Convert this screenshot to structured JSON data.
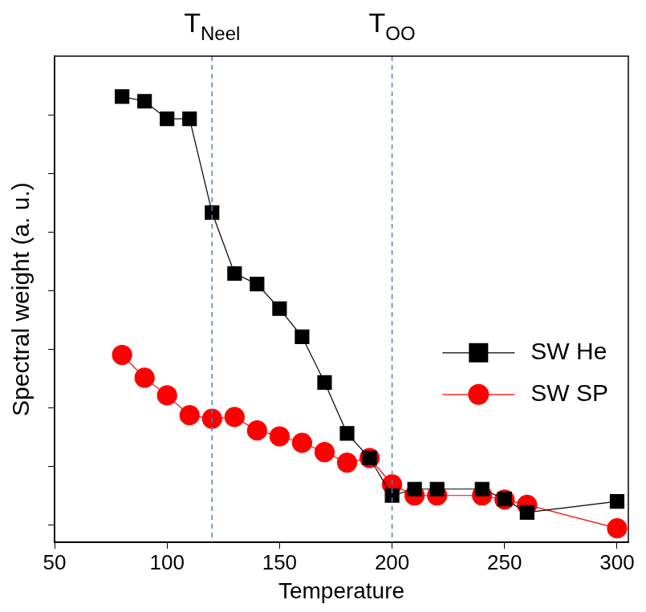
{
  "chart_data": {
    "type": "line",
    "x_label": "Temperature",
    "y_label": "Spectral weight (a. u.)",
    "x": [
      80,
      90,
      100,
      110,
      120,
      130,
      140,
      150,
      160,
      170,
      180,
      190,
      200,
      210,
      220,
      240,
      250,
      260,
      300
    ],
    "series": [
      {
        "name": "SW He",
        "color": "#000000",
        "marker": "square",
        "values": [
          8.31,
          8.23,
          7.93,
          7.93,
          6.33,
          5.29,
          5.11,
          4.69,
          4.21,
          3.43,
          2.56,
          2.14,
          1.5,
          1.61,
          1.61,
          1.61,
          1.44,
          1.21,
          1.4
        ]
      },
      {
        "name": "SW SP",
        "color": "#ff0000",
        "marker": "circle",
        "values": [
          3.9,
          3.51,
          3.21,
          2.87,
          2.81,
          2.84,
          2.61,
          2.51,
          2.4,
          2.24,
          2.06,
          2.14,
          1.69,
          1.5,
          1.5,
          1.5,
          1.43,
          1.34,
          0.94
        ]
      }
    ],
    "xlim": [
      50,
      305
    ],
    "xticks": [
      50,
      100,
      150,
      200,
      250,
      300
    ],
    "ylim": [
      0.7,
      9
    ],
    "yticks": [
      1,
      2,
      3,
      4,
      5,
      6,
      7,
      8
    ],
    "tick_labels": "x",
    "grid": false,
    "legend": "right",
    "annotations": [
      {
        "text": "T",
        "subscript": "Neel",
        "x": 120,
        "line_style": "dashed"
      },
      {
        "text": "T",
        "subscript": "OO",
        "x": 200,
        "line_style": "dashed"
      }
    ]
  }
}
